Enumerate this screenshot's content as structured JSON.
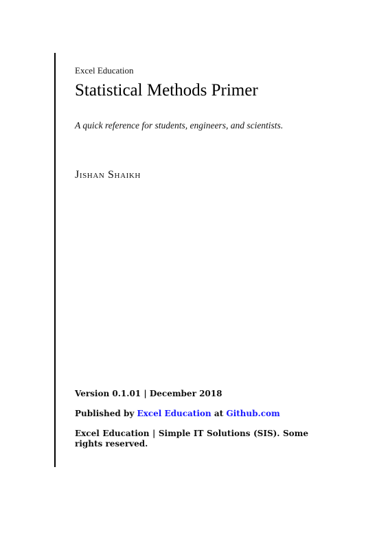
{
  "cover": {
    "publisher": "Excel Education",
    "title": "Statistical Methods Primer",
    "subtitle": "A quick reference for students, engineers, and scientists.",
    "author": "Jishan Shaikh"
  },
  "colophon": {
    "version_line": "Version 0.1.01 | December 2018",
    "published_prefix": "Published by ",
    "published_link_1": "Excel Education",
    "published_middle": " at ",
    "published_link_2": "Github.com",
    "license_line": "Excel Education | Simple IT Solutions (SIS). Some rights reserved."
  },
  "colors": {
    "link": "#1a1aff",
    "text": "#111111"
  }
}
